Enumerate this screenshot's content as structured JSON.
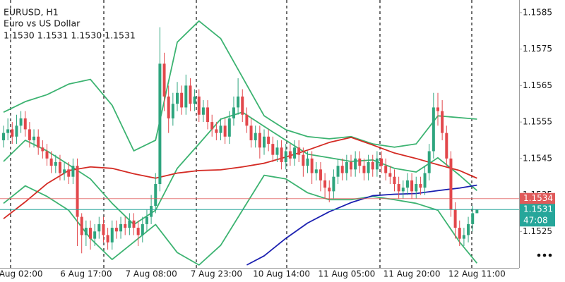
{
  "chart_data": {
    "type": "candlestick",
    "symbol": "EURUSD, H1",
    "description": "Euro vs US Dollar",
    "ohlc_text": "1.1530 1.1531 1.1530 1.1531",
    "categories": [
      null,
      null,
      null,
      null,
      "Aug 02:00",
      null,
      null,
      null,
      null,
      null,
      null,
      null,
      null,
      null,
      null,
      null,
      null,
      null,
      null,
      "6 Aug 17:00",
      null,
      null,
      null,
      null,
      null,
      null,
      null,
      null,
      null,
      null,
      null,
      null,
      null,
      null,
      "7 Aug 08:00",
      null,
      null,
      null,
      null,
      null,
      null,
      null,
      null,
      null,
      null,
      null,
      null,
      null,
      null,
      "7 Aug 23:00",
      null,
      null,
      null,
      null,
      null,
      null,
      null,
      null,
      null,
      null,
      null,
      null,
      null,
      null,
      "10 Aug 14:00",
      null,
      null,
      null,
      null,
      null,
      null,
      null,
      null,
      null,
      null,
      null,
      null,
      null,
      null,
      "11 Aug 05:00",
      null,
      null,
      null,
      null,
      null,
      null,
      null,
      null,
      null,
      null,
      null,
      null,
      null,
      null,
      "11 Aug 20:00",
      null,
      null,
      null,
      null,
      null,
      null,
      null,
      null,
      null,
      null,
      null,
      null,
      null,
      null,
      "12 Aug 11:00"
    ],
    "open": [
      1.155,
      1.1552,
      1.1553,
      1.1551,
      1.1554,
      1.1556,
      1.1553,
      1.155,
      1.1551,
      1.1548,
      1.1547,
      1.1545,
      1.1543,
      1.1544,
      1.1541,
      1.1542,
      1.154,
      1.1543,
      1.1529,
      1.1524,
      1.1526,
      1.1523,
      1.1525,
      1.1527,
      1.1524,
      1.1522,
      1.1526,
      1.1525,
      1.1527,
      1.1526,
      1.1528,
      1.1526,
      1.1524,
      1.1527,
      1.1529,
      1.1532,
      1.1538,
      1.1571,
      1.1562,
      1.1556,
      1.156,
      1.1563,
      1.1559,
      1.1565,
      1.156,
      1.1562,
      1.1557,
      1.1559,
      1.1555,
      1.1553,
      1.1552,
      1.1554,
      1.1551,
      1.1556,
      1.1559,
      1.1562,
      1.1557,
      1.1554,
      1.155,
      1.1552,
      1.1548,
      1.1551,
      1.1549,
      1.1546,
      1.1548,
      1.1544,
      1.1547,
      1.1545,
      1.1548,
      1.1546,
      1.1543,
      1.1545,
      1.1541,
      1.1542,
      1.1539,
      1.1537,
      1.1536,
      1.154,
      1.1543,
      1.1541,
      1.1544,
      1.1542,
      1.1545,
      1.1543,
      1.1541,
      1.1544,
      1.1542,
      1.1545,
      1.1543,
      1.1541,
      1.154,
      1.1538,
      1.1536,
      1.1537,
      1.1539,
      1.1536,
      1.1538,
      1.1537,
      1.1541,
      1.1547,
      1.1559,
      1.1558,
      1.1552,
      1.1545,
      1.1531,
      1.1526,
      1.1523,
      1.1524,
      1.1527,
      1.153
    ],
    "high": [
      1.1554,
      1.1556,
      1.1555,
      1.1557,
      1.1558,
      1.1558,
      1.1555,
      1.1553,
      1.1553,
      1.155,
      1.1549,
      1.1547,
      1.1546,
      1.1546,
      1.1544,
      1.1544,
      1.1545,
      1.1545,
      1.153,
      1.1528,
      1.1528,
      1.1527,
      1.1529,
      1.1529,
      1.1526,
      1.1528,
      1.1528,
      1.1529,
      1.1529,
      1.153,
      1.153,
      1.1528,
      1.1529,
      1.1531,
      1.1535,
      1.1541,
      1.1581,
      1.1574,
      1.1565,
      1.1563,
      1.1566,
      1.1565,
      1.1568,
      1.1567,
      1.1564,
      1.1564,
      1.1561,
      1.1561,
      1.1557,
      1.1555,
      1.1556,
      1.1556,
      1.1558,
      1.1562,
      1.1567,
      1.1564,
      1.1559,
      1.1556,
      1.1554,
      1.1554,
      1.1553,
      1.1553,
      1.1551,
      1.155,
      1.155,
      1.1549,
      1.1549,
      1.155,
      1.155,
      1.1548,
      1.1547,
      1.1547,
      1.1544,
      1.1544,
      1.1541,
      1.1539,
      1.1542,
      1.1545,
      1.1545,
      1.1546,
      1.1546,
      1.1547,
      1.1547,
      1.1545,
      1.1546,
      1.1546,
      1.1547,
      1.1547,
      1.1545,
      1.1543,
      1.1542,
      1.154,
      1.1539,
      1.1541,
      1.1541,
      1.154,
      1.154,
      1.1543,
      1.1549,
      1.1563,
      1.1563,
      1.1561,
      1.1554,
      1.1547,
      1.1533,
      1.1528,
      1.1526,
      1.1529,
      1.1532,
      1.1531
    ],
    "low": [
      1.1548,
      1.155,
      1.1549,
      1.1549,
      1.1552,
      1.1551,
      1.1548,
      1.1548,
      1.1546,
      1.1545,
      1.1543,
      1.1541,
      1.1541,
      1.1539,
      1.1539,
      1.1538,
      1.1538,
      1.1521,
      1.1519,
      1.1521,
      1.152,
      1.1521,
      1.1523,
      1.1522,
      1.152,
      1.152,
      1.1523,
      1.1523,
      1.1524,
      1.1524,
      1.1524,
      1.1521,
      1.1522,
      1.1525,
      1.1527,
      1.153,
      1.1536,
      1.1558,
      1.1552,
      1.1554,
      1.1558,
      1.1557,
      1.1557,
      1.1558,
      1.1558,
      1.1555,
      1.1555,
      1.1553,
      1.1551,
      1.155,
      1.155,
      1.1549,
      1.1549,
      1.1554,
      1.1557,
      1.1555,
      1.1552,
      1.1548,
      1.1548,
      1.1545,
      1.1546,
      1.1547,
      1.1544,
      1.1544,
      1.1542,
      1.1542,
      1.1543,
      1.1543,
      1.1544,
      1.154,
      1.1541,
      1.1538,
      1.1539,
      1.1536,
      1.1534,
      1.1533,
      1.1534,
      1.1538,
      1.1539,
      1.1539,
      1.154,
      1.154,
      1.1541,
      1.1539,
      1.1539,
      1.154,
      1.154,
      1.1541,
      1.1539,
      1.1538,
      1.1536,
      1.1534,
      1.1534,
      1.1535,
      1.1534,
      1.1534,
      1.1535,
      1.1535,
      1.1539,
      1.1545,
      1.1554,
      1.155,
      1.1543,
      1.1529,
      1.1523,
      1.1521,
      1.1521,
      1.1522,
      1.1525,
      1.153
    ],
    "close": [
      1.1552,
      1.1553,
      1.1551,
      1.1554,
      1.1556,
      1.1553,
      1.155,
      1.1551,
      1.1548,
      1.1547,
      1.1545,
      1.1543,
      1.1544,
      1.1541,
      1.1542,
      1.154,
      1.1543,
      1.1529,
      1.1524,
      1.1526,
      1.1523,
      1.1525,
      1.1527,
      1.1524,
      1.1522,
      1.1526,
      1.1525,
      1.1527,
      1.1526,
      1.1528,
      1.1526,
      1.1524,
      1.1527,
      1.1529,
      1.1532,
      1.1538,
      1.1571,
      1.1562,
      1.1556,
      1.156,
      1.1563,
      1.1559,
      1.1565,
      1.156,
      1.1562,
      1.1557,
      1.1559,
      1.1555,
      1.1553,
      1.1552,
      1.1554,
      1.1551,
      1.1556,
      1.1559,
      1.1562,
      1.1557,
      1.1554,
      1.155,
      1.1552,
      1.1548,
      1.1551,
      1.1549,
      1.1546,
      1.1548,
      1.1544,
      1.1547,
      1.1545,
      1.1548,
      1.1546,
      1.1543,
      1.1545,
      1.1541,
      1.1542,
      1.1539,
      1.1537,
      1.1536,
      1.154,
      1.1543,
      1.1541,
      1.1544,
      1.1542,
      1.1545,
      1.1543,
      1.1541,
      1.1544,
      1.1542,
      1.1545,
      1.1543,
      1.1541,
      1.154,
      1.1538,
      1.1536,
      1.1537,
      1.1539,
      1.1536,
      1.1538,
      1.1537,
      1.1541,
      1.1547,
      1.1559,
      1.1558,
      1.1552,
      1.1545,
      1.1531,
      1.1526,
      1.1523,
      1.1524,
      1.1527,
      1.153,
      1.1531
    ],
    "up_color": "#2ea57e",
    "down_color": "#e2474b",
    "ylim": [
      1.1515,
      1.1588
    ],
    "yticks": [
      1.1525,
      1.1535,
      1.1545,
      1.1555,
      1.1565,
      1.1575,
      1.1585
    ],
    "indicators": [
      {
        "color": "#3cb371",
        "x": [
          0,
          5,
          10,
          15,
          20,
          25,
          30,
          35,
          40,
          45,
          50,
          55,
          60,
          65,
          70,
          75,
          80,
          85,
          90,
          95,
          100,
          105,
          109
        ],
        "values": [
          1.15577,
          1.15606,
          1.15625,
          1.15654,
          1.15667,
          1.15596,
          1.15471,
          1.155,
          1.15769,
          1.15827,
          1.15779,
          1.15673,
          1.15567,
          1.15529,
          1.1551,
          1.15504,
          1.1551,
          1.1549,
          1.15481,
          1.1549,
          1.15567,
          1.15562,
          1.15558
        ]
      },
      {
        "color": "#3cb371",
        "x": [
          0,
          5,
          10,
          15,
          20,
          25,
          30,
          35,
          40,
          45,
          50,
          55,
          60,
          65,
          70,
          75,
          80,
          85,
          90,
          95,
          100,
          105,
          109
        ],
        "values": [
          1.15442,
          1.155,
          1.15471,
          1.15433,
          1.15394,
          1.15327,
          1.15269,
          1.15308,
          1.15423,
          1.1549,
          1.15558,
          1.15577,
          1.15538,
          1.155,
          1.15462,
          1.15452,
          1.15442,
          1.15446,
          1.15423,
          1.15413,
          1.15452,
          1.15404,
          1.15362
        ]
      },
      {
        "color": "#3cb371",
        "x": [
          0,
          5,
          10,
          15,
          20,
          25,
          30,
          35,
          40,
          45,
          50,
          55,
          60,
          65,
          70,
          75,
          80,
          85,
          90,
          95,
          100,
          105,
          109
        ],
        "values": [
          1.15327,
          1.15375,
          1.15346,
          1.15308,
          1.15231,
          1.15173,
          1.15221,
          1.15269,
          1.15192,
          1.15158,
          1.15212,
          1.15308,
          1.15404,
          1.15394,
          1.15356,
          1.15337,
          1.15337,
          1.15346,
          1.15337,
          1.15327,
          1.15308,
          1.15221,
          1.15163
        ]
      },
      {
        "color": "#d42a23",
        "x": [
          0,
          5,
          10,
          15,
          20,
          25,
          30,
          35,
          40,
          45,
          50,
          55,
          60,
          65,
          70,
          75,
          80,
          85,
          90,
          95,
          100,
          105,
          109
        ],
        "values": [
          1.15285,
          1.15331,
          1.15381,
          1.15417,
          1.15427,
          1.15423,
          1.15408,
          1.15396,
          1.1541,
          1.15417,
          1.15419,
          1.15427,
          1.15437,
          1.15454,
          1.15473,
          1.15494,
          1.15508,
          1.15487,
          1.15465,
          1.1545,
          1.15433,
          1.15417,
          1.15396
        ]
      },
      {
        "color": "#1a1fb0",
        "x": [
          56,
          60,
          65,
          70,
          75,
          80,
          85,
          90,
          95,
          100,
          105,
          109
        ],
        "values": [
          1.15158,
          1.15183,
          1.15231,
          1.15273,
          1.15304,
          1.15329,
          1.15348,
          1.15352,
          1.15354,
          1.15362,
          1.15369,
          1.15377
        ]
      }
    ],
    "ask_line": {
      "value": 1.1534,
      "color": "#e05a5a"
    },
    "bid_line": {
      "value": 1.1531,
      "color": "#26a69a"
    },
    "countdown": "47:08"
  }
}
